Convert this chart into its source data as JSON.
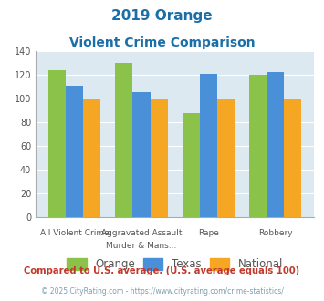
{
  "title_line1": "2019 Orange",
  "title_line2": "Violent Crime Comparison",
  "cat_labels_top": [
    "",
    "Aggravated Assault",
    "",
    ""
  ],
  "cat_labels_bot": [
    "All Violent Crime",
    "Murder & Mans...",
    "Rape",
    "Robbery"
  ],
  "orange_values": [
    124,
    130,
    88,
    120
  ],
  "texas_values": [
    111,
    105,
    121,
    122
  ],
  "national_values": [
    100,
    100,
    100,
    100
  ],
  "orange_color": "#8bc34a",
  "texas_color": "#4a90d9",
  "national_color": "#f5a623",
  "ylim": [
    0,
    140
  ],
  "yticks": [
    0,
    20,
    40,
    60,
    80,
    100,
    120,
    140
  ],
  "chart_bg": "#dce9f0",
  "title_color": "#1a6fa8",
  "footnote1": "Compared to U.S. average. (U.S. average equals 100)",
  "footnote2": "© 2025 CityRating.com - https://www.cityrating.com/crime-statistics/",
  "footnote1_color": "#c0392b",
  "footnote2_color": "#7f9faf",
  "legend_labels": [
    "Orange",
    "Texas",
    "National"
  ],
  "legend_text_color": "#555555"
}
